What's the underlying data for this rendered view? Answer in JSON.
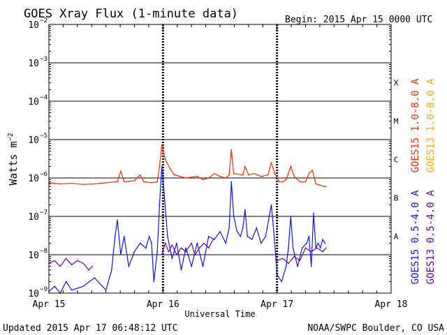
{
  "chart_data": {
    "type": "line",
    "title": "GOES Xray Flux (1-minute data)",
    "begin_label": "Begin:  2015 Apr 15 0000 UTC",
    "ylabel": "Watts m",
    "ylabel_sup": "-2",
    "xlabel": "Universal Time",
    "ylim": [
      1e-09,
      0.01
    ],
    "yscale": "log",
    "xlim": [
      0,
      3
    ],
    "x_ticks": [
      {
        "x": 0,
        "label": "Apr 15"
      },
      {
        "x": 1,
        "label": "Apr 16"
      },
      {
        "x": 2,
        "label": "Apr 17"
      },
      {
        "x": 3,
        "label": "Apr 18"
      }
    ],
    "y_ticks": [
      {
        "exp": -9,
        "label": "10"
      },
      {
        "exp": -8,
        "label": "10"
      },
      {
        "exp": -7,
        "label": "10"
      },
      {
        "exp": -6,
        "label": "10"
      },
      {
        "exp": -5,
        "label": "10"
      },
      {
        "exp": -4,
        "label": "10"
      },
      {
        "exp": -3,
        "label": "10"
      },
      {
        "exp": -2,
        "label": "10"
      }
    ],
    "flare_classes": [
      {
        "exp": -8,
        "label": "A"
      },
      {
        "exp": -7,
        "label": "B"
      },
      {
        "exp": -6,
        "label": "C"
      },
      {
        "exp": -5,
        "label": "M"
      },
      {
        "exp": -4,
        "label": "X"
      }
    ],
    "grid": true,
    "legend_position": "right, rotated",
    "series": [
      {
        "name": "GOES15 1.0-8.0 A",
        "color": "#ff2a00",
        "points": [
          [
            0.0,
            7.5e-07
          ],
          [
            0.1,
            7e-07
          ],
          [
            0.2,
            7.2e-07
          ],
          [
            0.3,
            6.8e-07
          ],
          [
            0.4,
            7e-07
          ],
          [
            0.5,
            7.5e-07
          ],
          [
            0.6,
            8e-07
          ],
          [
            0.63,
            1.5e-06
          ],
          [
            0.66,
            8e-07
          ],
          [
            0.75,
            8.5e-07
          ],
          [
            0.8,
            1.2e-06
          ],
          [
            0.83,
            8e-07
          ],
          [
            0.9,
            7.5e-07
          ],
          [
            0.95,
            8e-07
          ],
          [
            0.97,
            2e-06
          ],
          [
            0.99,
            7.5e-06
          ],
          [
            1.02,
            3e-06
          ],
          [
            1.06,
            1.8e-06
          ],
          [
            1.1,
            1.2e-06
          ],
          [
            1.2,
            1e-06
          ],
          [
            1.3,
            1.1e-06
          ],
          [
            1.35,
            9e-07
          ],
          [
            1.4,
            1e-06
          ],
          [
            1.45,
            1.3e-06
          ],
          [
            1.5,
            1.1e-06
          ],
          [
            1.55,
            1e-06
          ],
          [
            1.58,
            1.2e-06
          ],
          [
            1.6,
            5.5e-06
          ],
          [
            1.62,
            1.3e-06
          ],
          [
            1.7,
            1.2e-06
          ],
          [
            1.72,
            2e-06
          ],
          [
            1.75,
            1.2e-06
          ],
          [
            1.8,
            1.3e-06
          ],
          [
            1.86,
            1.1e-06
          ],
          [
            1.92,
            1.2e-06
          ],
          [
            1.95,
            2.5e-06
          ],
          [
            1.98,
            1.3e-06
          ],
          [
            2.02,
            8e-07
          ],
          [
            2.05,
            8e-07
          ],
          [
            2.08,
            9e-07
          ],
          [
            2.12,
            2e-06
          ],
          [
            2.15,
            1.1e-06
          ],
          [
            2.2,
            8e-07
          ],
          [
            2.25,
            8e-07
          ],
          [
            2.28,
            1.3e-06
          ],
          [
            2.31,
            1.6e-06
          ],
          [
            2.34,
            7e-07
          ],
          [
            2.38,
            6.5e-07
          ],
          [
            2.41,
            6e-07
          ],
          [
            2.43,
            6e-07
          ]
        ]
      },
      {
        "name": "GOES13 1.0-8.0 A",
        "color": "#ffaa00",
        "points": []
      },
      {
        "name": "GOES15 0.5-4.0 A",
        "color": "#1010ff",
        "points": [
          [
            0.0,
            1.1e-09
          ],
          [
            0.05,
            1.5e-09
          ],
          [
            0.1,
            1e-09
          ],
          [
            0.15,
            2e-09
          ],
          [
            0.2,
            1.2e-09
          ],
          [
            0.3,
            1.5e-09
          ],
          [
            0.4,
            2.5e-09
          ],
          [
            0.5,
            1.2e-09
          ],
          [
            0.55,
            4e-09
          ],
          [
            0.58,
            3e-08
          ],
          [
            0.6,
            8e-08
          ],
          [
            0.63,
            1e-08
          ],
          [
            0.66,
            3e-08
          ],
          [
            0.7,
            5e-09
          ],
          [
            0.75,
            1.2e-08
          ],
          [
            0.8,
            2e-08
          ],
          [
            0.85,
            1.5e-08
          ],
          [
            0.88,
            3e-08
          ],
          [
            0.9,
            2e-08
          ],
          [
            0.92,
            2e-09
          ],
          [
            0.95,
            1.2e-08
          ],
          [
            0.97,
            2e-07
          ],
          [
            0.99,
            2e-06
          ],
          [
            1.01,
            4e-07
          ],
          [
            1.04,
            3e-08
          ],
          [
            1.08,
            8e-09
          ],
          [
            1.12,
            2e-08
          ],
          [
            1.16,
            4e-09
          ],
          [
            1.2,
            1.5e-08
          ],
          [
            1.25,
            5e-09
          ],
          [
            1.3,
            2e-08
          ],
          [
            1.35,
            5e-09
          ],
          [
            1.4,
            3e-08
          ],
          [
            1.45,
            2.5e-08
          ],
          [
            1.5,
            4e-08
          ],
          [
            1.55,
            2e-08
          ],
          [
            1.58,
            5e-08
          ],
          [
            1.6,
            8e-07
          ],
          [
            1.62,
            1e-07
          ],
          [
            1.65,
            4e-08
          ],
          [
            1.68,
            3e-08
          ],
          [
            1.7,
            5e-08
          ],
          [
            1.72,
            1.5e-07
          ],
          [
            1.74,
            3e-08
          ],
          [
            1.78,
            2.5e-08
          ],
          [
            1.82,
            5e-08
          ],
          [
            1.86,
            2e-08
          ],
          [
            1.9,
            3e-08
          ],
          [
            1.95,
            2e-07
          ],
          [
            1.98,
            2e-08
          ],
          [
            2.0,
            3e-09
          ],
          [
            2.04,
            2e-09
          ],
          [
            2.08,
            5e-09
          ],
          [
            2.1,
            1.5e-08
          ],
          [
            2.12,
            1e-07
          ],
          [
            2.14,
            1.5e-08
          ],
          [
            2.18,
            5e-09
          ],
          [
            2.22,
            1.5e-08
          ],
          [
            2.26,
            2e-08
          ],
          [
            2.28,
            3e-08
          ],
          [
            2.3,
            5e-09
          ],
          [
            2.32,
            1.2e-07
          ],
          [
            2.34,
            1.5e-08
          ],
          [
            2.36,
            2e-08
          ],
          [
            2.38,
            1.5e-08
          ],
          [
            2.4,
            2.5e-08
          ],
          [
            2.42,
            2e-08
          ]
        ]
      },
      {
        "name": "GOES13 0.5-4.0 A",
        "color": "#6a00b0",
        "points": [
          [
            0.0,
            6e-09
          ],
          [
            0.05,
            7e-09
          ],
          [
            0.1,
            5e-09
          ],
          [
            0.15,
            8e-09
          ],
          [
            0.2,
            5.5e-09
          ],
          [
            0.25,
            7e-09
          ],
          [
            0.3,
            6e-09
          ],
          [
            0.35,
            4e-09
          ],
          [
            0.38,
            5e-09
          ],
          [
            0.99,
            1e-08
          ],
          [
            1.02,
            2e-08
          ],
          [
            1.05,
            1.2e-08
          ],
          [
            1.08,
            1.8e-08
          ],
          [
            1.12,
            1e-08
          ],
          [
            1.16,
            1.5e-08
          ],
          [
            1.2,
            1.2e-08
          ],
          [
            1.25,
            2e-08
          ],
          [
            1.28,
            1e-08
          ],
          [
            1.32,
            1.5e-08
          ],
          [
            1.36,
            2e-08
          ],
          [
            1.4,
            1.5e-08
          ],
          [
            1.44,
            2.5e-08
          ],
          [
            2.0,
            7e-09
          ],
          [
            2.05,
            8e-09
          ],
          [
            2.1,
            6e-09
          ],
          [
            2.15,
            9e-09
          ],
          [
            2.2,
            7e-09
          ],
          [
            2.25,
            1.5e-08
          ],
          [
            2.3,
            1.2e-08
          ],
          [
            2.35,
            1.5e-08
          ],
          [
            2.4,
            1.2e-08
          ],
          [
            2.43,
            1.5e-08
          ]
        ]
      }
    ]
  },
  "footer": {
    "updated": "Updated 2015 Apr 17 06:48:12 UTC",
    "credit": "NOAA/SWPC Boulder, CO USA"
  }
}
